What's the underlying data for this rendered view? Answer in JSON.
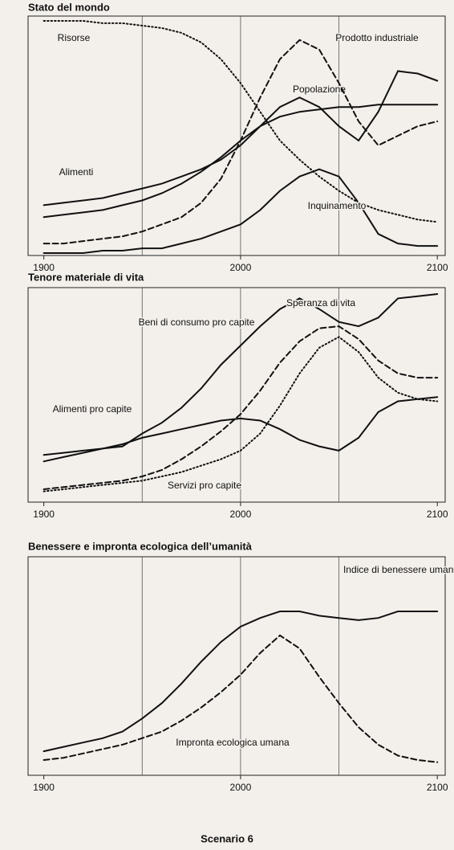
{
  "chart_data": [
    {
      "type": "line",
      "title": "Stato del mondo",
      "x": [
        1900,
        1910,
        1920,
        1930,
        1940,
        1950,
        1960,
        1970,
        1980,
        1990,
        2000,
        2010,
        2020,
        2030,
        2040,
        2050,
        2060,
        2070,
        2080,
        2090,
        2100
      ],
      "xlim": [
        1892,
        2104
      ],
      "xticks": [
        1900,
        2000,
        2100
      ],
      "xgrid": [
        1950,
        2000,
        2050
      ],
      "ylim": [
        0,
        100
      ],
      "series": [
        {
          "name": "Risorse",
          "color": "#111111",
          "dash": "dotted",
          "values": [
            98,
            98,
            98,
            97,
            97,
            96,
            95,
            93,
            89,
            82,
            72,
            60,
            48,
            40,
            33,
            27,
            22,
            19,
            17,
            15,
            14
          ]
        },
        {
          "name": "Popolazione",
          "color": "#111111",
          "dash": "solid",
          "values": [
            16,
            17,
            18,
            19,
            21,
            23,
            26,
            30,
            35,
            41,
            48,
            54,
            58,
            60,
            61,
            62,
            62,
            63,
            63,
            63,
            63
          ]
        },
        {
          "name": "Alimenti",
          "color": "#111111",
          "dash": "solid",
          "values": [
            21,
            22,
            23,
            24,
            26,
            28,
            30,
            33,
            36,
            40,
            46,
            54,
            62,
            66,
            62,
            54,
            48,
            60,
            77,
            76,
            73
          ]
        },
        {
          "name": "Prodotto industriale",
          "color": "#111111",
          "dash": "dashed",
          "values": [
            5,
            5,
            6,
            7,
            8,
            10,
            13,
            16,
            22,
            32,
            48,
            66,
            82,
            90,
            86,
            72,
            56,
            46,
            50,
            54,
            56
          ]
        },
        {
          "name": "Inquinamento",
          "color": "#111111",
          "dash": "solid",
          "values": [
            1,
            1,
            1,
            2,
            2,
            3,
            3,
            5,
            7,
            10,
            13,
            19,
            27,
            33,
            36,
            33,
            22,
            9,
            5,
            4,
            4
          ]
        }
      ]
    },
    {
      "type": "line",
      "title": "Tenore materiale di vita",
      "x": [
        1900,
        1910,
        1920,
        1930,
        1940,
        1950,
        1960,
        1970,
        1980,
        1990,
        2000,
        2010,
        2020,
        2030,
        2040,
        2050,
        2060,
        2070,
        2080,
        2090,
        2100
      ],
      "xlim": [
        1892,
        2104
      ],
      "xticks": [
        1900,
        2000,
        2100
      ],
      "xgrid": [
        1950,
        2000,
        2050
      ],
      "ylim": [
        0,
        100
      ],
      "series": [
        {
          "name": "Speranza di vita",
          "color": "#111111",
          "dash": "solid",
          "values": [
            22,
            23,
            24,
            25,
            26,
            32,
            37,
            44,
            53,
            64,
            73,
            82,
            90,
            95,
            90,
            84,
            82,
            86,
            95,
            96,
            97
          ]
        },
        {
          "name": "Beni di consumo pro capite",
          "color": "#111111",
          "dash": "dashed",
          "values": [
            6,
            7,
            8,
            9,
            10,
            12,
            15,
            20,
            26,
            33,
            41,
            52,
            65,
            75,
            81,
            82,
            76,
            66,
            60,
            58,
            58
          ]
        },
        {
          "name": "Alimenti pro capite",
          "color": "#111111",
          "dash": "solid",
          "values": [
            19,
            21,
            23,
            25,
            27,
            30,
            32,
            34,
            36,
            38,
            39,
            38,
            34,
            29,
            26,
            24,
            30,
            42,
            47,
            48,
            49
          ]
        },
        {
          "name": "Servizi pro capite",
          "color": "#111111",
          "dash": "dotted",
          "values": [
            5,
            6,
            7,
            8,
            9,
            10,
            12,
            14,
            17,
            20,
            24,
            32,
            45,
            60,
            72,
            77,
            70,
            58,
            51,
            48,
            47
          ]
        }
      ]
    },
    {
      "type": "line",
      "title": "Benessere e impronta ecologica dell’umanità",
      "x": [
        1900,
        1910,
        1920,
        1930,
        1940,
        1950,
        1960,
        1970,
        1980,
        1990,
        2000,
        2010,
        2020,
        2030,
        2040,
        2050,
        2060,
        2070,
        2080,
        2090,
        2100
      ],
      "xlim": [
        1892,
        2104
      ],
      "xticks": [
        1900,
        2000,
        2100
      ],
      "xgrid": [
        1950,
        2000,
        2050
      ],
      "ylim": [
        0,
        100
      ],
      "series": [
        {
          "name": "Indice di benessere umano",
          "color": "#111111",
          "dash": "solid",
          "values": [
            11,
            13,
            15,
            17,
            20,
            26,
            33,
            42,
            52,
            61,
            68,
            72,
            75,
            75,
            73,
            72,
            71,
            72,
            75,
            75,
            75
          ]
        },
        {
          "name": "Impronta ecologica umana",
          "color": "#111111",
          "dash": "dashed",
          "values": [
            7,
            8,
            10,
            12,
            14,
            17,
            20,
            25,
            31,
            38,
            46,
            56,
            64,
            58,
            45,
            33,
            22,
            14,
            9,
            7,
            6
          ]
        }
      ]
    }
  ],
  "caption": "Scenario 6"
}
